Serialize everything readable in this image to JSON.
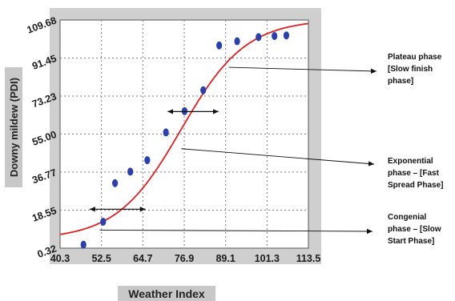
{
  "chart_data": {
    "type": "scatter",
    "xlabel": "Weather Index",
    "ylabel": "Downy mildew (PDI)",
    "x_ticks": [
      "40.3",
      "52.5",
      "64.7",
      "76.9",
      "89.1",
      "101.3",
      "113.5"
    ],
    "y_ticks": [
      "0.32",
      "18.55",
      "36.77",
      "55.00",
      "73.23",
      "91.45",
      "109.68"
    ],
    "xlim": [
      40.3,
      113.5
    ],
    "ylim": [
      0.32,
      109.68
    ],
    "points": [
      {
        "x": 47.2,
        "y": 2.0
      },
      {
        "x": 53.0,
        "y": 13.0
      },
      {
        "x": 56.5,
        "y": 31.5
      },
      {
        "x": 61.0,
        "y": 37.0
      },
      {
        "x": 66.0,
        "y": 42.5
      },
      {
        "x": 71.5,
        "y": 55.8
      },
      {
        "x": 77.0,
        "y": 66.0
      },
      {
        "x": 82.5,
        "y": 76.0
      },
      {
        "x": 87.2,
        "y": 97.5
      },
      {
        "x": 92.5,
        "y": 99.5
      },
      {
        "x": 98.8,
        "y": 101.5
      },
      {
        "x": 103.5,
        "y": 102.0
      },
      {
        "x": 107.0,
        "y": 102.3
      }
    ],
    "fit_curve": {
      "model": "logistic",
      "lower": 4.5,
      "upper": 110.0,
      "midpoint": 76.0,
      "rate": 0.105
    },
    "annotations": [
      {
        "label": "Plateau phase [Slow finish phase]",
        "lines": [
          "Plateau phase",
          "[Slow finish",
          "phase]"
        ],
        "target": {
          "x": 90.0,
          "y": 87.0
        }
      },
      {
        "label": "Exponential phase – [Fast Spread Phase]",
        "lines": [
          "Exponential",
          "phase – [Fast",
          "Spread Phase]"
        ],
        "target": {
          "x": 76.0,
          "y": 48.0
        }
      },
      {
        "label": "Congenial phase – [Slow Start Phase]",
        "lines": [
          "Congenial",
          "phase – [Slow",
          "Start Phase]"
        ],
        "target": {
          "x": 52.0,
          "y": 9.0
        }
      }
    ],
    "range_arrows": [
      {
        "x1": 49.0,
        "x2": 65.5,
        "y": 19.0
      },
      {
        "x1": 72.0,
        "x2": 87.0,
        "y": 65.8
      }
    ],
    "colors": {
      "panel": "#cfcfcf",
      "plot_bg": "#ffffff",
      "grid": "#7a7a7a",
      "points": "#2a3fb0",
      "curve": "#e02020",
      "label_box": "#c8c8c8"
    }
  }
}
